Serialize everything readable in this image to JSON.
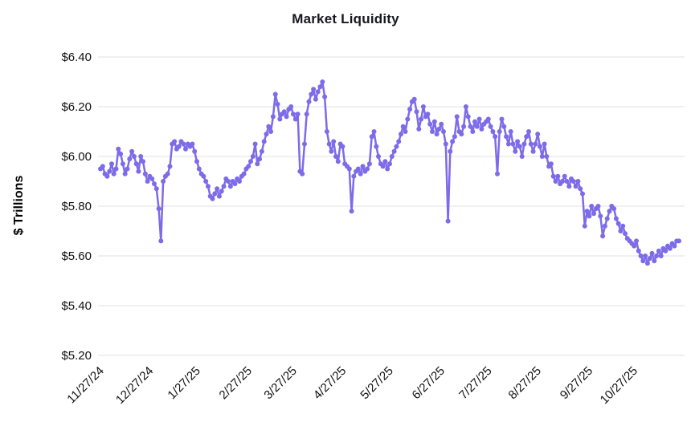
{
  "chart_data": {
    "type": "line",
    "title": "Market Liquidity",
    "xlabel": "",
    "ylabel": "$ Trillions",
    "line_color": "#7d6be9",
    "grid_color": "#e2e2e2",
    "text_color": "#111111",
    "grid": true,
    "legend": false,
    "ylim": [
      5.2,
      6.4
    ],
    "y_ticks": [
      5.2,
      5.4,
      5.6,
      5.8,
      6.0,
      6.2,
      6.4
    ],
    "y_tick_labels": [
      "$5.20",
      "$5.40",
      "$5.60",
      "$5.80",
      "$6.00",
      "$6.20",
      "$6.40"
    ],
    "x_tick_labels": [
      "11/27/24",
      "12/27/24",
      "1/27/25",
      "2/27/25",
      "3/27/25",
      "4/27/25",
      "5/27/25",
      "6/27/25",
      "7/27/25",
      "8/27/25",
      "9/27/25",
      "10/27/25"
    ],
    "series": [
      {
        "name": "Market Liquidity",
        "unit": "$ Trillions",
        "start_date": "2024-11-27",
        "frequency": "business-daily",
        "values": [
          5.95,
          5.96,
          5.93,
          5.92,
          5.94,
          5.97,
          5.93,
          5.95,
          6.03,
          6.01,
          5.97,
          5.93,
          5.95,
          5.99,
          6.02,
          6.0,
          5.97,
          5.94,
          6.0,
          5.98,
          5.93,
          5.9,
          5.92,
          5.91,
          5.89,
          5.87,
          5.79,
          5.66,
          5.9,
          5.92,
          5.93,
          5.96,
          6.05,
          6.06,
          6.03,
          6.04,
          6.06,
          6.05,
          6.03,
          6.05,
          6.04,
          6.05,
          6.02,
          5.98,
          5.95,
          5.93,
          5.92,
          5.9,
          5.88,
          5.84,
          5.83,
          5.85,
          5.87,
          5.84,
          5.86,
          5.88,
          5.91,
          5.9,
          5.88,
          5.9,
          5.89,
          5.91,
          5.9,
          5.92,
          5.93,
          5.95,
          5.96,
          5.98,
          6.0,
          6.05,
          5.97,
          5.99,
          6.02,
          6.06,
          6.09,
          6.12,
          6.1,
          6.16,
          6.25,
          6.21,
          6.15,
          6.17,
          6.18,
          6.16,
          6.19,
          6.2,
          6.17,
          6.15,
          6.17,
          5.94,
          5.93,
          6.05,
          6.17,
          6.22,
          6.25,
          6.27,
          6.23,
          6.26,
          6.28,
          6.3,
          6.24,
          6.1,
          6.05,
          6.02,
          6.06,
          6.0,
          5.98,
          6.05,
          6.04,
          5.97,
          5.96,
          5.95,
          5.78,
          5.92,
          5.94,
          5.95,
          5.93,
          5.96,
          5.94,
          5.95,
          5.97,
          6.08,
          6.1,
          6.04,
          6.0,
          5.97,
          5.96,
          5.98,
          5.95,
          5.97,
          6.0,
          6.02,
          6.04,
          6.06,
          6.09,
          6.12,
          6.1,
          6.15,
          6.19,
          6.22,
          6.23,
          6.18,
          6.11,
          6.15,
          6.2,
          6.16,
          6.17,
          6.13,
          6.1,
          6.14,
          6.09,
          6.11,
          6.13,
          6.1,
          6.05,
          5.74,
          6.02,
          6.06,
          6.08,
          6.16,
          6.1,
          6.09,
          6.12,
          6.2,
          6.16,
          6.12,
          6.1,
          6.14,
          6.12,
          6.15,
          6.11,
          6.13,
          6.14,
          6.15,
          6.12,
          6.1,
          6.08,
          5.93,
          6.1,
          6.15,
          6.12,
          6.08,
          6.05,
          6.1,
          6.05,
          6.02,
          6.06,
          6.04,
          6.0,
          6.05,
          6.08,
          6.1,
          6.05,
          6.02,
          6.05,
          6.09,
          6.04,
          6.0,
          6.05,
          6.0,
          5.96,
          5.97,
          5.92,
          5.9,
          5.92,
          5.89,
          5.9,
          5.92,
          5.9,
          5.88,
          5.91,
          5.9,
          5.88,
          5.9,
          5.87,
          5.85,
          5.72,
          5.78,
          5.76,
          5.8,
          5.77,
          5.79,
          5.8,
          5.76,
          5.68,
          5.72,
          5.75,
          5.78,
          5.8,
          5.79,
          5.75,
          5.73,
          5.7,
          5.72,
          5.69,
          5.67,
          5.66,
          5.65,
          5.64,
          5.66,
          5.62,
          5.6,
          5.58,
          5.6,
          5.57,
          5.59,
          5.61,
          5.58,
          5.6,
          5.62,
          5.6,
          5.63,
          5.62,
          5.64,
          5.63,
          5.65,
          5.64,
          5.66,
          5.66
        ]
      }
    ]
  }
}
